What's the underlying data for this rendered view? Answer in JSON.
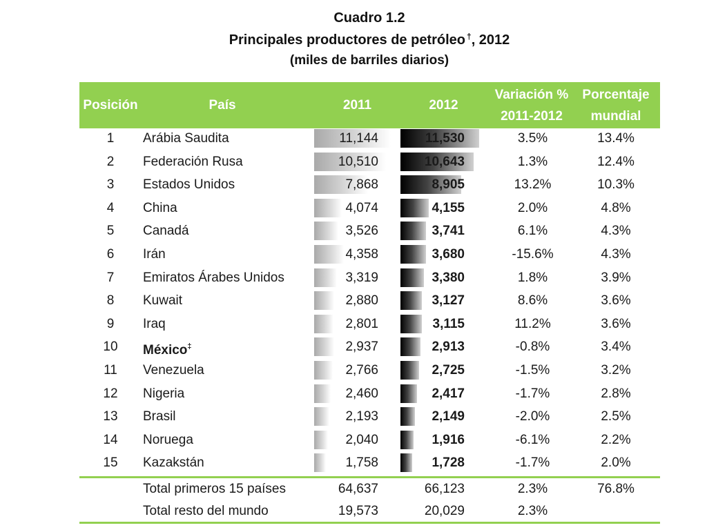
{
  "title": {
    "line1": "Cuadro 1.2",
    "line2": "Principales productores de petróleo",
    "line2_mark": "†",
    "line2_suffix": ", 2012",
    "line3": "(miles de barriles diarios)"
  },
  "header": {
    "posicion": "Posición",
    "pais": "País",
    "y2011": "2011",
    "y2012": "2012",
    "variacion_1": "Variación %",
    "variacion_2": "2011-2012",
    "porcentaje_1": "Porcentaje",
    "porcentaje_2": "mundial"
  },
  "colors": {
    "header_bg": "#92d050",
    "header_text": "#ffffff",
    "rule": "#92d050"
  },
  "rows": [
    {
      "pos": "1",
      "pais": "Arábia Saudita",
      "v2011": "11,144",
      "v2012": "11,530",
      "var": "3.5%",
      "pct": "13.4%",
      "n2011": 11144,
      "n2012": 11530
    },
    {
      "pos": "2",
      "pais": "Federación Rusa",
      "v2011": "10,510",
      "v2012": "10,643",
      "var": "1.3%",
      "pct": "12.4%",
      "n2011": 10510,
      "n2012": 10643
    },
    {
      "pos": "3",
      "pais": "Estados Unidos",
      "v2011": "7,868",
      "v2012": "8,905",
      "var": "13.2%",
      "pct": "10.3%",
      "n2011": 7868,
      "n2012": 8905
    },
    {
      "pos": "4",
      "pais": "China",
      "v2011": "4,074",
      "v2012": "4,155",
      "var": "2.0%",
      "pct": "4.8%",
      "n2011": 4074,
      "n2012": 4155
    },
    {
      "pos": "5",
      "pais": "Canadá",
      "v2011": "3,526",
      "v2012": "3,741",
      "var": "6.1%",
      "pct": "4.3%",
      "n2011": 3526,
      "n2012": 3741
    },
    {
      "pos": "6",
      "pais": "Irán",
      "v2011": "4,358",
      "v2012": "3,680",
      "var": "-15.6%",
      "pct": "4.3%",
      "n2011": 4358,
      "n2012": 3680
    },
    {
      "pos": "7",
      "pais": "Emiratos Árabes Unidos",
      "v2011": "3,319",
      "v2012": "3,380",
      "var": "1.8%",
      "pct": "3.9%",
      "n2011": 3319,
      "n2012": 3380
    },
    {
      "pos": "8",
      "pais": "Kuwait",
      "v2011": "2,880",
      "v2012": "3,127",
      "var": "8.6%",
      "pct": "3.6%",
      "n2011": 2880,
      "n2012": 3127
    },
    {
      "pos": "9",
      "pais": "Iraq",
      "v2011": "2,801",
      "v2012": "3,115",
      "var": "11.2%",
      "pct": "3.6%",
      "n2011": 2801,
      "n2012": 3115
    },
    {
      "pos": "10",
      "pais": "México",
      "mark": "‡",
      "bold": true,
      "v2011": "2,937",
      "v2012": "2,913",
      "var": "-0.8%",
      "pct": "3.4%",
      "n2011": 2937,
      "n2012": 2913
    },
    {
      "pos": "11",
      "pais": "Venezuela",
      "v2011": "2,766",
      "v2012": "2,725",
      "var": "-1.5%",
      "pct": "3.2%",
      "n2011": 2766,
      "n2012": 2725
    },
    {
      "pos": "12",
      "pais": "Nigeria",
      "v2011": "2,460",
      "v2012": "2,417",
      "var": "-1.7%",
      "pct": "2.8%",
      "n2011": 2460,
      "n2012": 2417
    },
    {
      "pos": "13",
      "pais": "Brasil",
      "v2011": "2,193",
      "v2012": "2,149",
      "var": "-2.0%",
      "pct": "2.5%",
      "n2011": 2193,
      "n2012": 2149
    },
    {
      "pos": "14",
      "pais": "Noruega",
      "v2011": "2,040",
      "v2012": "1,916",
      "var": "-6.1%",
      "pct": "2.2%",
      "n2011": 2040,
      "n2012": 1916
    },
    {
      "pos": "15",
      "pais": "Kazakstán",
      "v2011": "1,758",
      "v2012": "1,728",
      "var": "-1.7%",
      "pct": "2.0%",
      "n2011": 1758,
      "n2012": 1728
    }
  ],
  "totals": [
    {
      "label": "Total primeros 15 países",
      "v2011": "64,637",
      "v2012": "66,123",
      "var": "2.3%",
      "pct": "76.8%"
    },
    {
      "label": "Total resto del mundo",
      "v2011": "19,573",
      "v2012": "20,029",
      "var": "2.3%",
      "pct": ""
    }
  ]
}
